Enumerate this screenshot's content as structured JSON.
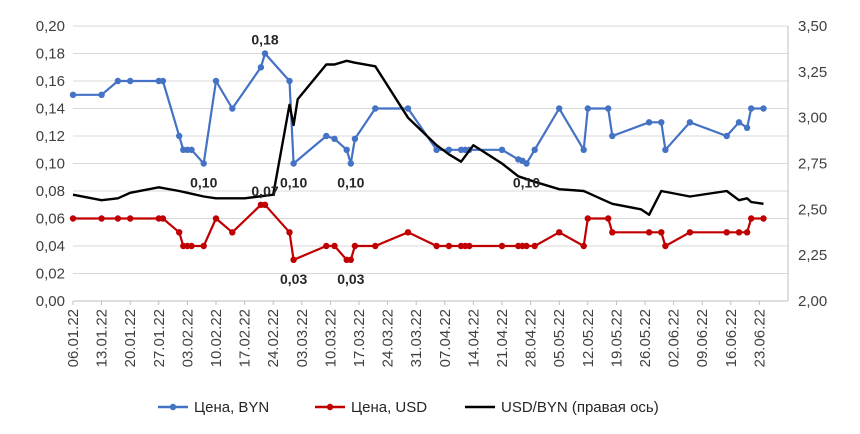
{
  "chart_data": {
    "type": "line",
    "title": "",
    "xlabel": "",
    "ylabel": "",
    "ylim": [
      0,
      0.2
    ],
    "y2lim": [
      2.0,
      3.5
    ],
    "y_ticks": [
      "0,00",
      "0,02",
      "0,04",
      "0,06",
      "0,08",
      "0,10",
      "0,12",
      "0,14",
      "0,16",
      "0,18",
      "0,20"
    ],
    "y2_ticks": [
      "2,00",
      "2,25",
      "2,50",
      "2,75",
      "3,00",
      "3,25",
      "3,50"
    ],
    "x_start": "2022-01-06",
    "x_end": "2022-06-30",
    "x_ticks": [
      "06.01.22",
      "13.01.22",
      "20.01.22",
      "27.01.22",
      "03.02.22",
      "10.02.22",
      "17.02.22",
      "24.02.22",
      "03.03.22",
      "10.03.22",
      "17.03.22",
      "24.03.22",
      "31.03.22",
      "07.04.22",
      "14.04.22",
      "21.04.22",
      "28.04.22",
      "05.05.22",
      "12.05.22",
      "19.05.22",
      "26.05.22",
      "02.06.22",
      "09.06.22",
      "16.06.22",
      "23.06.22"
    ],
    "legend_position": "bottom",
    "series": [
      {
        "name": "Цена, BYN",
        "axis": "left",
        "color": "#4472C4",
        "marker": true,
        "x": [
          "2022-01-06",
          "2022-01-13",
          "2022-01-17",
          "2022-01-20",
          "2022-01-27",
          "2022-01-28",
          "2022-02-01",
          "2022-02-02",
          "2022-02-03",
          "2022-02-04",
          "2022-02-07",
          "2022-02-10",
          "2022-02-14",
          "2022-02-21",
          "2022-02-22",
          "2022-02-28",
          "2022-03-01",
          "2022-03-09",
          "2022-03-11",
          "2022-03-14",
          "2022-03-15",
          "2022-03-16",
          "2022-03-21",
          "2022-03-29",
          "2022-04-05",
          "2022-04-08",
          "2022-04-11",
          "2022-04-12",
          "2022-04-13",
          "2022-04-21",
          "2022-04-25",
          "2022-04-26",
          "2022-04-27",
          "2022-04-29",
          "2022-05-05",
          "2022-05-11",
          "2022-05-12",
          "2022-05-17",
          "2022-05-18",
          "2022-05-27",
          "2022-05-30",
          "2022-05-31",
          "2022-06-06",
          "2022-06-15",
          "2022-06-18",
          "2022-06-20",
          "2022-06-21",
          "2022-06-24"
        ],
        "values": [
          0.15,
          0.15,
          0.16,
          0.16,
          0.16,
          0.16,
          0.12,
          0.11,
          0.11,
          0.11,
          0.1,
          0.16,
          0.14,
          0.17,
          0.18,
          0.16,
          0.1,
          0.12,
          0.118,
          0.11,
          0.1,
          0.118,
          0.14,
          0.14,
          0.11,
          0.11,
          0.11,
          0.11,
          0.11,
          0.11,
          0.103,
          0.102,
          0.1,
          0.11,
          0.14,
          0.11,
          0.14,
          0.14,
          0.12,
          0.13,
          0.13,
          0.11,
          0.13,
          0.12,
          0.13,
          0.126,
          0.14,
          0.14
        ]
      },
      {
        "name": "Цена, USD",
        "axis": "left",
        "color": "#C00000",
        "marker": true,
        "x": [
          "2022-01-06",
          "2022-01-13",
          "2022-01-17",
          "2022-01-20",
          "2022-01-27",
          "2022-01-28",
          "2022-02-01",
          "2022-02-02",
          "2022-02-03",
          "2022-02-04",
          "2022-02-07",
          "2022-02-10",
          "2022-02-14",
          "2022-02-21",
          "2022-02-22",
          "2022-02-28",
          "2022-03-01",
          "2022-03-09",
          "2022-03-11",
          "2022-03-14",
          "2022-03-15",
          "2022-03-16",
          "2022-03-21",
          "2022-03-29",
          "2022-04-05",
          "2022-04-08",
          "2022-04-11",
          "2022-04-12",
          "2022-04-13",
          "2022-04-21",
          "2022-04-25",
          "2022-04-26",
          "2022-04-27",
          "2022-04-29",
          "2022-05-05",
          "2022-05-11",
          "2022-05-12",
          "2022-05-17",
          "2022-05-18",
          "2022-05-27",
          "2022-05-30",
          "2022-05-31",
          "2022-06-06",
          "2022-06-15",
          "2022-06-18",
          "2022-06-20",
          "2022-06-21",
          "2022-06-24"
        ],
        "values": [
          0.06,
          0.06,
          0.06,
          0.06,
          0.06,
          0.06,
          0.05,
          0.04,
          0.04,
          0.04,
          0.04,
          0.06,
          0.05,
          0.07,
          0.07,
          0.05,
          0.03,
          0.04,
          0.04,
          0.03,
          0.03,
          0.04,
          0.04,
          0.05,
          0.04,
          0.04,
          0.04,
          0.04,
          0.04,
          0.04,
          0.04,
          0.04,
          0.04,
          0.04,
          0.05,
          0.04,
          0.06,
          0.06,
          0.05,
          0.05,
          0.05,
          0.04,
          0.05,
          0.05,
          0.05,
          0.05,
          0.06,
          0.06
        ]
      },
      {
        "name": "USD/BYN (правая ось)",
        "axis": "right",
        "color": "#000000",
        "marker": false,
        "x": [
          "2022-01-06",
          "2022-01-13",
          "2022-01-17",
          "2022-01-20",
          "2022-01-27",
          "2022-02-01",
          "2022-02-03",
          "2022-02-07",
          "2022-02-10",
          "2022-02-17",
          "2022-02-24",
          "2022-02-28",
          "2022-03-01",
          "2022-03-02",
          "2022-03-09",
          "2022-03-11",
          "2022-03-14",
          "2022-03-16",
          "2022-03-21",
          "2022-03-29",
          "2022-04-05",
          "2022-04-08",
          "2022-04-11",
          "2022-04-14",
          "2022-04-21",
          "2022-04-25",
          "2022-04-29",
          "2022-05-05",
          "2022-05-11",
          "2022-05-12",
          "2022-05-16",
          "2022-05-18",
          "2022-05-25",
          "2022-05-27",
          "2022-05-30",
          "2022-06-06",
          "2022-06-15",
          "2022-06-18",
          "2022-06-20",
          "2022-06-21",
          "2022-06-24"
        ],
        "values": [
          2.58,
          2.55,
          2.56,
          2.59,
          2.62,
          2.6,
          2.59,
          2.57,
          2.56,
          2.56,
          2.58,
          3.07,
          2.96,
          3.1,
          3.29,
          3.29,
          3.31,
          3.3,
          3.28,
          3.0,
          2.85,
          2.8,
          2.76,
          2.85,
          2.75,
          2.68,
          2.65,
          2.61,
          2.6,
          2.59,
          2.55,
          2.53,
          2.5,
          2.47,
          2.6,
          2.57,
          2.6,
          2.55,
          2.56,
          2.54,
          2.53
        ]
      }
    ],
    "annotations": [
      {
        "text": "0,18",
        "x": "2022-02-22",
        "y": 0.18
      },
      {
        "text": "0,10",
        "x": "2022-02-07",
        "y": 0.1
      },
      {
        "text": "0,10",
        "x": "2022-03-01",
        "y": 0.1
      },
      {
        "text": "0,10",
        "x": "2022-03-15",
        "y": 0.1
      },
      {
        "text": "0,10",
        "x": "2022-04-27",
        "y": 0.1
      },
      {
        "text": "0,07",
        "x": "2022-02-22",
        "y": 0.07
      },
      {
        "text": "0,03",
        "x": "2022-03-01",
        "y": 0.03
      },
      {
        "text": "0,03",
        "x": "2022-03-15",
        "y": 0.03
      }
    ]
  }
}
